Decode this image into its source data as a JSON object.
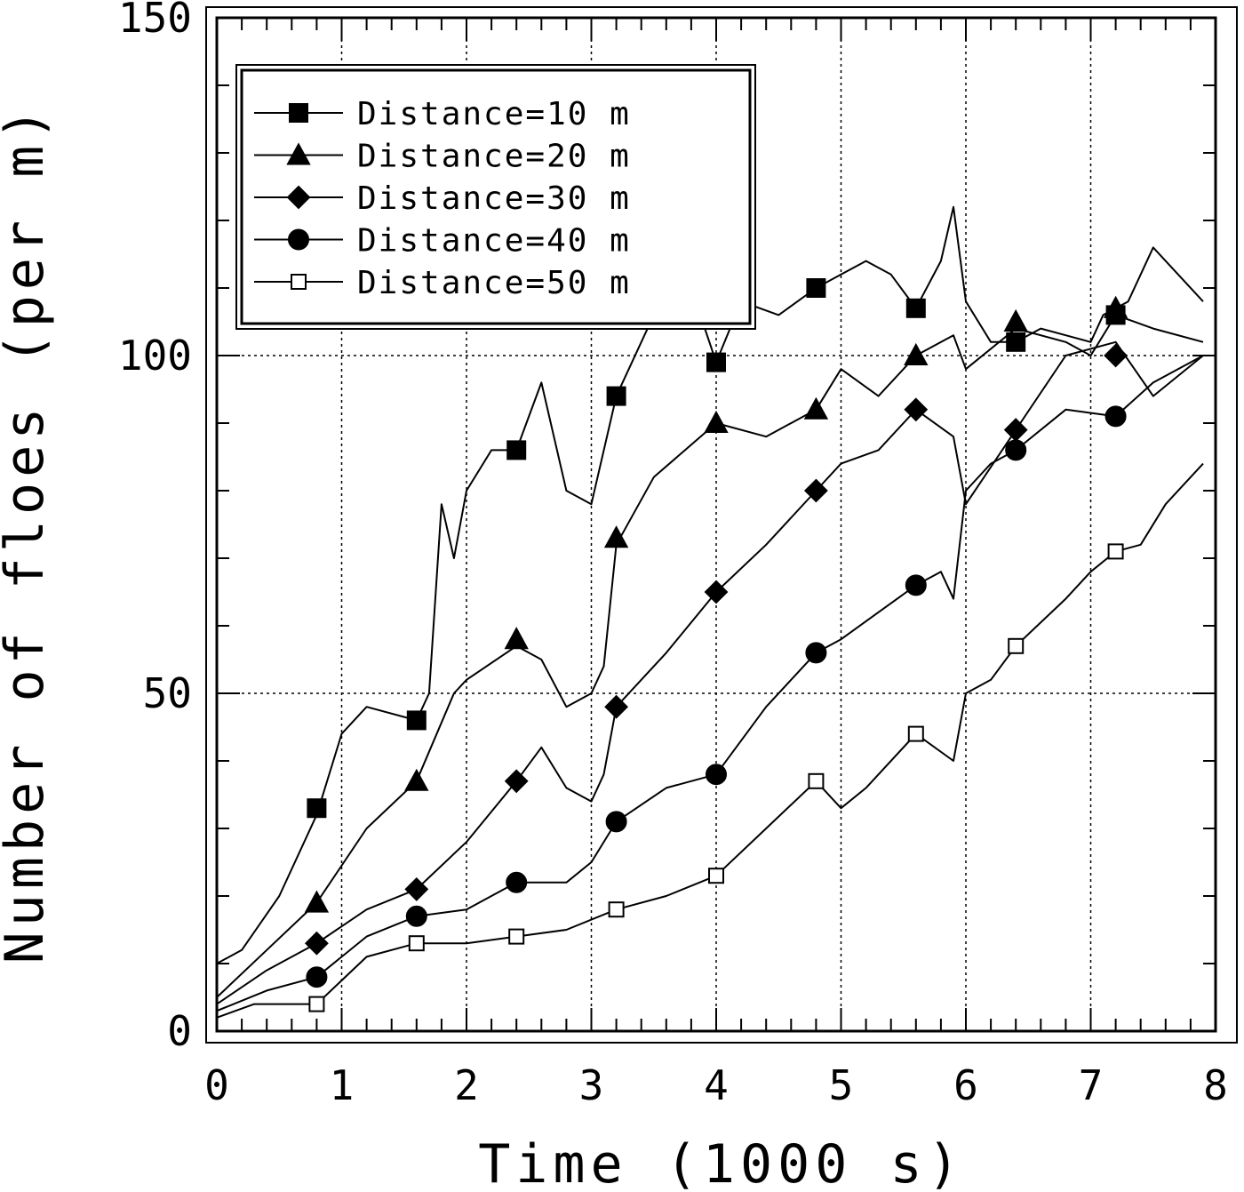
{
  "chart_data": {
    "type": "line",
    "title": "",
    "xlabel": "Time (1000 s)",
    "ylabel": "Number of floes (per m)",
    "xlim": [
      0,
      8
    ],
    "ylim": [
      0,
      150
    ],
    "x_ticks": [
      0,
      1,
      2,
      3,
      4,
      5,
      6,
      7,
      8
    ],
    "x_tick_labels": [
      "0",
      "1",
      "2",
      "3",
      "4",
      "5",
      "6",
      "7",
      "8"
    ],
    "y_ticks": [
      0,
      50,
      100,
      150
    ],
    "y_tick_labels": [
      "0",
      "50",
      "100",
      "150"
    ],
    "grid": true,
    "legend_position": "top-left",
    "series": [
      {
        "name": "Distance=10 m",
        "marker": "filled-square",
        "x": [
          0,
          0.2,
          0.5,
          0.8,
          1.0,
          1.2,
          1.6,
          1.7,
          1.8,
          1.9,
          2.0,
          2.2,
          2.4,
          2.6,
          2.8,
          3.0,
          3.2,
          3.5,
          3.8,
          4.0,
          4.2,
          4.5,
          4.8,
          5.0,
          5.2,
          5.4,
          5.6,
          5.8,
          5.9,
          6.0,
          6.2,
          6.4,
          6.6,
          6.8,
          7.0,
          7.1,
          7.3,
          7.5,
          7.7,
          7.9
        ],
        "y": [
          10,
          12,
          20,
          32,
          44,
          48,
          46,
          50,
          78,
          70,
          80,
          86,
          86,
          96,
          80,
          78,
          94,
          106,
          110,
          99,
          108,
          106,
          110,
          112,
          114,
          112,
          107,
          114,
          122,
          108,
          102,
          102,
          104,
          103,
          102,
          106,
          108,
          116,
          112,
          108
        ],
        "marker_x": [
          0.8,
          1.6,
          2.4,
          3.2,
          4.0,
          4.8,
          5.6,
          6.4,
          7.2
        ],
        "marker_y": [
          33,
          46,
          86,
          94,
          99,
          110,
          107,
          102,
          106
        ]
      },
      {
        "name": "Distance=20 m",
        "marker": "filled-triangle",
        "x": [
          0,
          0.4,
          0.8,
          1.2,
          1.6,
          1.9,
          2.0,
          2.4,
          2.6,
          2.8,
          3.0,
          3.1,
          3.2,
          3.5,
          4.0,
          4.4,
          4.8,
          5.0,
          5.3,
          5.6,
          5.9,
          6.0,
          6.4,
          6.8,
          7.0,
          7.2,
          7.5,
          7.9
        ],
        "y": [
          5,
          12,
          19,
          30,
          37,
          50,
          52,
          57,
          55,
          48,
          50,
          54,
          72,
          82,
          90,
          88,
          92,
          98,
          94,
          100,
          103,
          98,
          104,
          102,
          100,
          106,
          104,
          102
        ],
        "marker_x": [
          0.8,
          1.6,
          2.4,
          3.2,
          4.0,
          4.8,
          5.6,
          6.4,
          7.2
        ],
        "marker_y": [
          19,
          37,
          58,
          73,
          90,
          92,
          100,
          105,
          107
        ]
      },
      {
        "name": "Distance=30 m",
        "marker": "filled-diamond",
        "x": [
          0,
          0.4,
          0.8,
          1.2,
          1.6,
          2.0,
          2.4,
          2.6,
          2.8,
          3.0,
          3.1,
          3.2,
          3.6,
          4.0,
          4.4,
          4.8,
          5.0,
          5.3,
          5.6,
          5.9,
          6.0,
          6.4,
          6.8,
          7.2,
          7.5,
          7.9
        ],
        "y": [
          4,
          9,
          13,
          18,
          21,
          28,
          37,
          42,
          36,
          34,
          38,
          48,
          56,
          65,
          72,
          80,
          84,
          86,
          92,
          88,
          78,
          89,
          100,
          102,
          94,
          100
        ],
        "marker_x": [
          0.8,
          1.6,
          2.4,
          3.2,
          4.0,
          4.8,
          5.6,
          6.4,
          7.2
        ],
        "marker_y": [
          13,
          21,
          37,
          48,
          65,
          80,
          92,
          89,
          100
        ]
      },
      {
        "name": "Distance=40 m",
        "marker": "filled-circle",
        "x": [
          0,
          0.4,
          0.8,
          1.2,
          1.6,
          2.0,
          2.4,
          2.8,
          3.0,
          3.2,
          3.6,
          4.0,
          4.4,
          4.8,
          5.0,
          5.3,
          5.6,
          5.8,
          5.9,
          6.0,
          6.2,
          6.4,
          6.8,
          7.2,
          7.5,
          7.9
        ],
        "y": [
          3,
          6,
          8,
          14,
          17,
          18,
          22,
          22,
          25,
          31,
          36,
          38,
          48,
          56,
          58,
          62,
          66,
          68,
          64,
          80,
          84,
          86,
          92,
          91,
          96,
          100
        ],
        "marker_x": [
          0.8,
          1.6,
          2.4,
          3.2,
          4.0,
          4.8,
          5.6,
          6.4,
          7.2
        ],
        "marker_y": [
          8,
          17,
          22,
          31,
          38,
          56,
          66,
          86,
          91
        ]
      },
      {
        "name": "Distance=50 m",
        "marker": "open-square",
        "x": [
          0,
          0.3,
          0.8,
          1.2,
          1.6,
          2.0,
          2.4,
          2.8,
          3.2,
          3.6,
          4.0,
          4.4,
          4.8,
          5.0,
          5.2,
          5.6,
          5.9,
          6.0,
          6.2,
          6.4,
          6.8,
          7.0,
          7.2,
          7.4,
          7.6,
          7.9
        ],
        "y": [
          2,
          4,
          4,
          11,
          13,
          13,
          14,
          15,
          18,
          20,
          23,
          30,
          37,
          33,
          36,
          44,
          40,
          50,
          52,
          57,
          64,
          68,
          71,
          72,
          78,
          84
        ],
        "marker_x": [
          0.8,
          1.6,
          2.4,
          3.2,
          4.0,
          4.8,
          5.6,
          6.4,
          7.2
        ],
        "marker_y": [
          4,
          13,
          14,
          18,
          23,
          37,
          44,
          57,
          71
        ]
      }
    ]
  }
}
